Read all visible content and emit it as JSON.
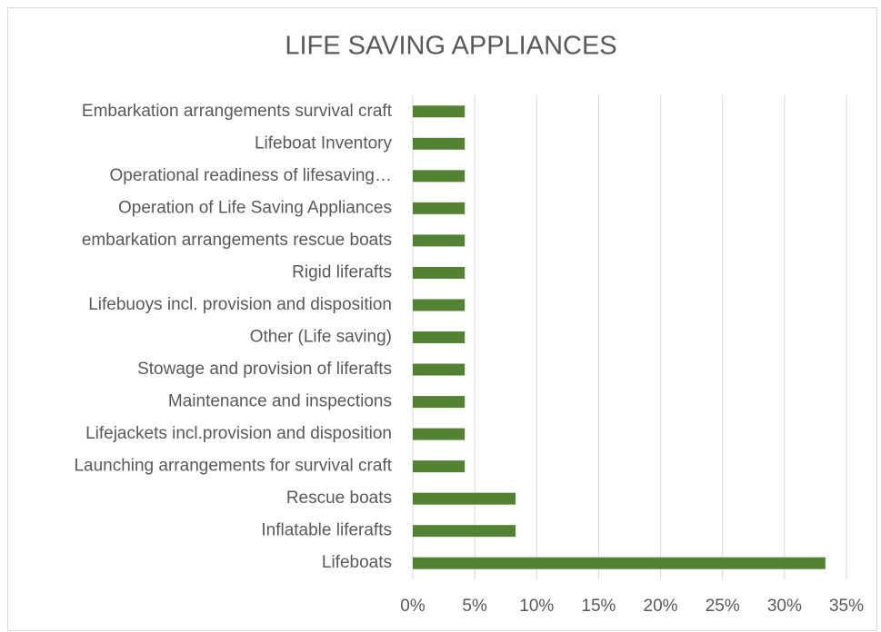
{
  "chart_data": {
    "type": "bar",
    "orientation": "horizontal",
    "title": "LIFE SAVING APPLIANCES",
    "categories": [
      "Embarkation arrangements survival craft",
      "Lifeboat Inventory",
      "Operational readiness of lifesaving…",
      "Operation of Life Saving Appliances",
      "embarkation arrangements rescue boats",
      "Rigid liferafts",
      "Lifebuoys incl. provision and disposition",
      "Other (Life saving)",
      "Stowage and provision of liferafts",
      "Maintenance and inspections",
      "Lifejackets incl.provision and disposition",
      "Launching arrangements for survival craft",
      "Rescue boats",
      "Inflatable liferafts",
      "Lifeboats"
    ],
    "values": [
      4.2,
      4.2,
      4.2,
      4.2,
      4.2,
      4.2,
      4.2,
      4.2,
      4.2,
      4.2,
      4.2,
      4.2,
      8.3,
      8.3,
      33.3
    ],
    "color": "#548235",
    "xlim": [
      0,
      35
    ],
    "xticks": [
      {
        "value": 0,
        "label": "0%"
      },
      {
        "value": 5,
        "label": "5%"
      },
      {
        "value": 10,
        "label": "10%"
      },
      {
        "value": 15,
        "label": "15%"
      },
      {
        "value": 20,
        "label": "20%"
      },
      {
        "value": 25,
        "label": "25%"
      },
      {
        "value": 30,
        "label": "30%"
      },
      {
        "value": 35,
        "label": "35%"
      }
    ],
    "grid": true
  }
}
